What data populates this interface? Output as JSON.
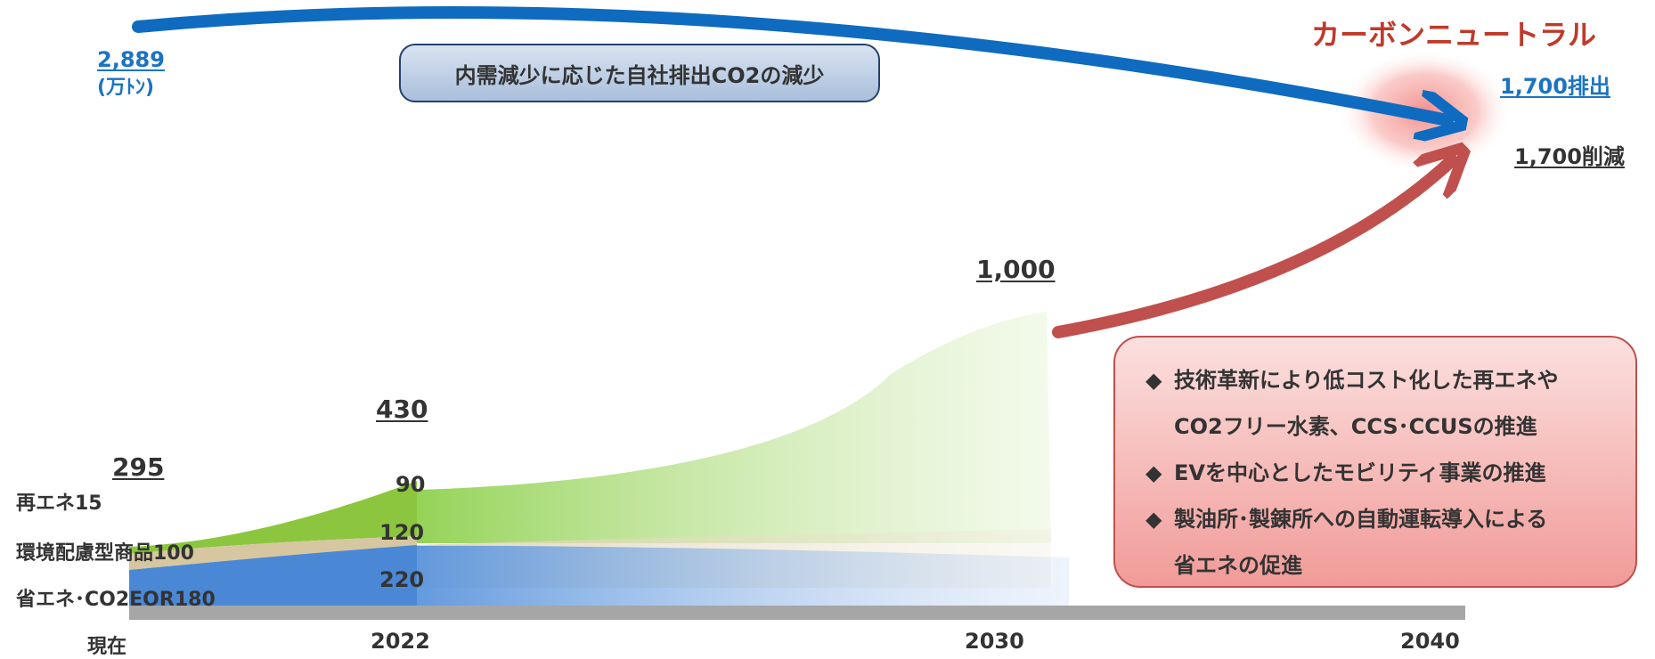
{
  "top_label": {
    "value": "2,889",
    "unit": "(万ﾄﾝ)"
  },
  "header_box": "内需減少に応じた自社排出CO2の減少",
  "goal": {
    "title": "カーボンニュートラル",
    "emission": "1,700排出",
    "reduction": "1,700削減"
  },
  "milestones": {
    "now_total": "295",
    "y2022_total": "430",
    "y2030_total": "1,000"
  },
  "segments_now": {
    "renewables": "再エネ15",
    "eco_products": "環境配慮型商品100",
    "energy_saving": "省エネ･CO2EOR180"
  },
  "segments_2022": {
    "renewables": "90",
    "eco_products": "120",
    "energy_saving": "220"
  },
  "bullets": [
    {
      "marker": "◆",
      "text": "技術革新により低コスト化した再エネや"
    },
    {
      "marker": "",
      "text": "CO2フリー水素、CCS･CCUSの推進"
    },
    {
      "marker": "◆",
      "text": "EVを中心としたモビリティ事業の推進"
    },
    {
      "marker": "◆",
      "text": "製油所･製錬所への自動運転導入による"
    },
    {
      "marker": "",
      "text": "省エネの促進"
    }
  ],
  "timeline": [
    "現在",
    "2022",
    "2030",
    "2040"
  ],
  "colors": {
    "blue_arrow": "#0f6bbf",
    "red_arrow": "#c0504d",
    "green": "#7ec843",
    "tan": "#cdb98f",
    "blue_band": "#3a7fd0",
    "goal_title": "#c0392b",
    "axis": "#a6a6a6"
  }
}
